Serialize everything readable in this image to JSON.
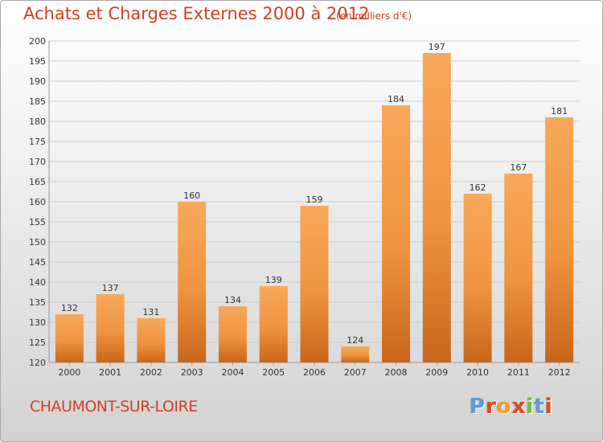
{
  "title": "Achats et Charges Externes 2000 à 2012",
  "units": "(en milliers d'€)",
  "city": "CHAUMONT-SUR-LOIRE",
  "logo": {
    "letters": [
      "P",
      "r",
      "o",
      "x",
      "i",
      "t",
      "i"
    ],
    "colors": [
      "#5b9bd5",
      "#e0491f",
      "#f0a030",
      "#e0491f",
      "#7bbf3a",
      "#5b9bd5",
      "#e0491f"
    ]
  },
  "colors": {
    "bar_light": "#f7a552",
    "bar_dark": "#c8661b",
    "grid": "#cccccc",
    "title": "#d2401e"
  },
  "chart_data": {
    "type": "bar",
    "categories": [
      "2000",
      "2001",
      "2002",
      "2003",
      "2004",
      "2005",
      "2006",
      "2007",
      "2008",
      "2009",
      "2010",
      "2011",
      "2012"
    ],
    "values": [
      132,
      137,
      131,
      160,
      134,
      139,
      159,
      124,
      184,
      197,
      162,
      167,
      181
    ],
    "title": "Achats et Charges Externes 2000 à 2012",
    "ylim": [
      120,
      200
    ],
    "yticks": [
      120,
      125,
      130,
      135,
      140,
      145,
      150,
      155,
      160,
      165,
      170,
      175,
      180,
      185,
      190,
      195,
      200
    ],
    "grid": true,
    "value_labels": true
  }
}
